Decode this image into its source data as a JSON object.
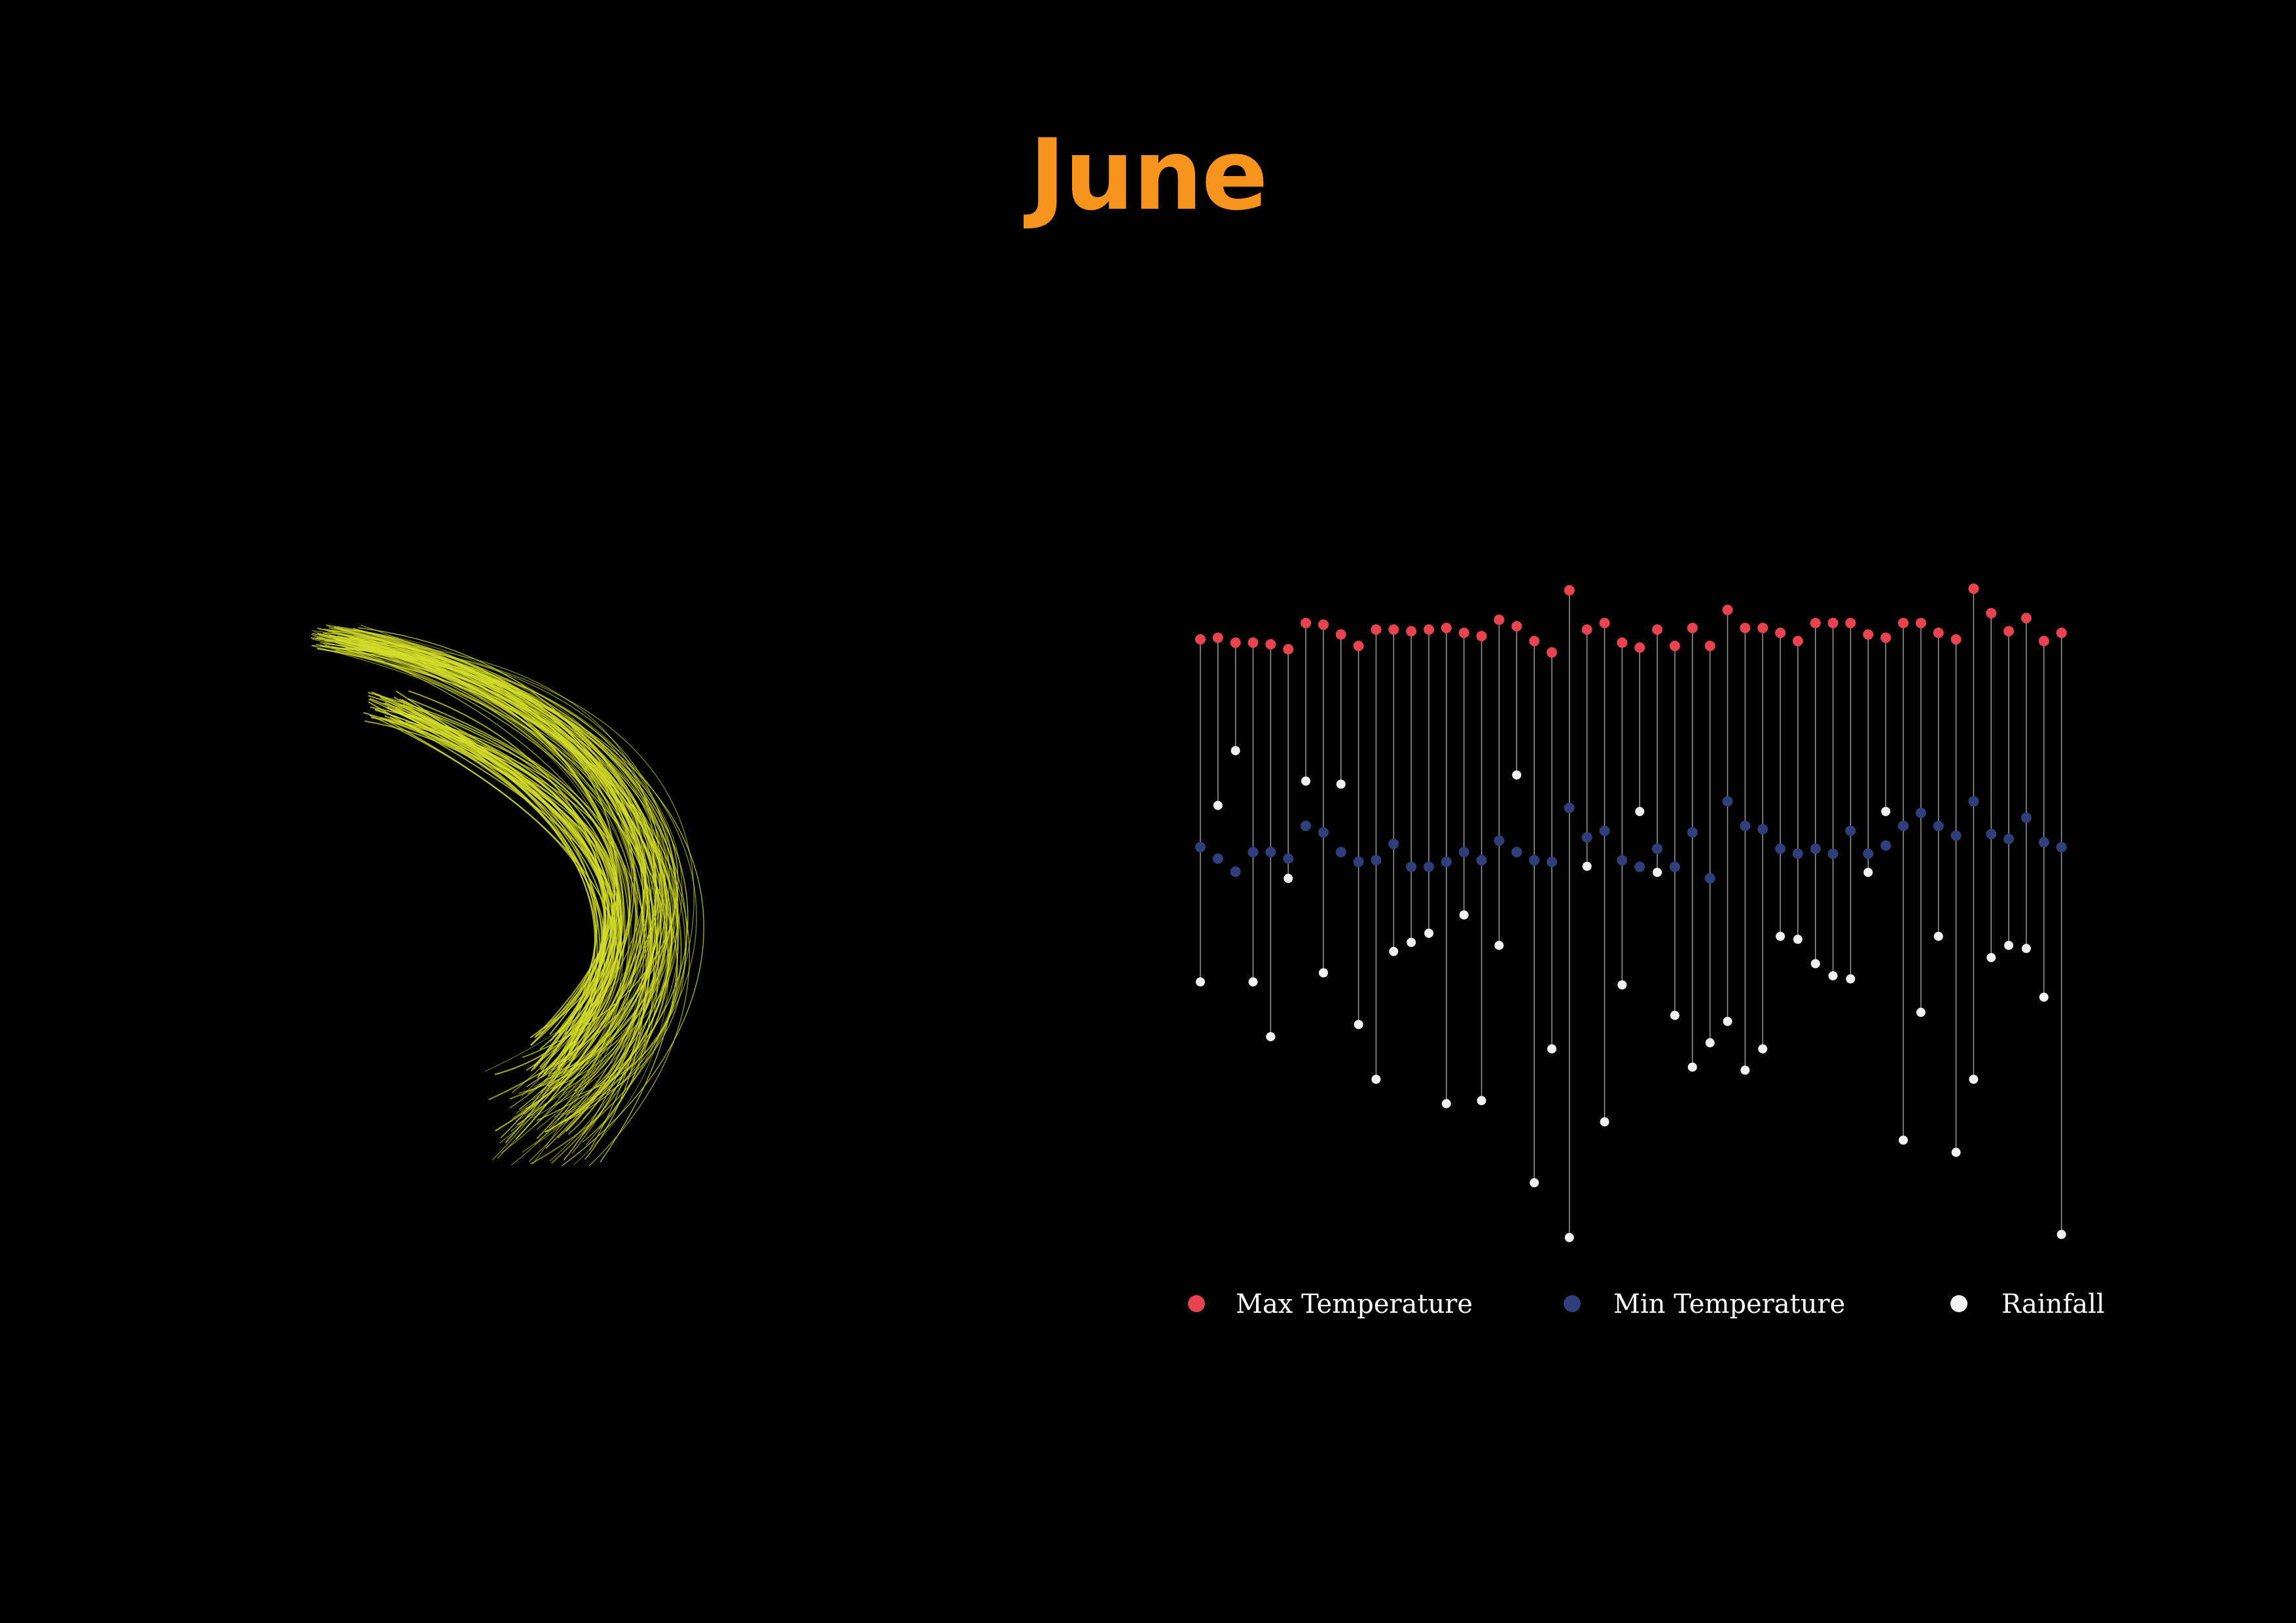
{
  "title": "June",
  "colors": {
    "background": "#000000",
    "title": "#f7941d",
    "swirl": "#d4de2a",
    "stem": "#bfbfbf",
    "max": "#e8434f",
    "min": "#2e3f7c",
    "rain": "#f2f2f2",
    "legend_text": "#ffffff"
  },
  "chart_data": [
    {
      "type": "line",
      "title": "",
      "xlabel": "",
      "ylabel": "",
      "note": "abstract swirl of overlapping curves, no axes or values printed",
      "series": []
    },
    {
      "type": "scatter",
      "title": "",
      "xlabel": "",
      "ylabel": "",
      "grid": false,
      "legend_position": "bottom",
      "series": [
        {
          "name": "Max Temperature",
          "values": [
            39.0,
            39.1,
            38.8,
            38.8,
            38.7,
            38.4,
            40.0,
            39.9,
            39.3,
            38.6,
            39.6,
            39.6,
            39.5,
            39.6,
            39.7,
            39.4,
            39.2,
            40.2,
            39.8,
            38.9,
            38.2,
            42.0,
            39.6,
            40.0,
            38.8,
            38.5,
            39.6,
            38.6,
            39.7,
            38.6,
            40.8,
            39.7,
            39.7,
            39.4,
            38.9,
            40.0,
            40.0,
            40.0,
            39.3,
            39.1,
            40.0,
            40.0,
            39.4,
            39.0,
            42.1,
            40.6,
            39.5,
            40.3,
            38.9,
            39.4
          ]
        },
        {
          "name": "Min Temperature",
          "values": [
            26.3,
            25.6,
            24.8,
            26.0,
            26.0,
            25.6,
            27.6,
            27.2,
            26.0,
            25.4,
            25.5,
            26.5,
            25.1,
            25.1,
            25.4,
            26.0,
            25.5,
            26.7,
            26.0,
            25.5,
            25.4,
            28.7,
            26.9,
            27.3,
            25.5,
            25.1,
            26.2,
            25.1,
            27.2,
            24.4,
            29.1,
            27.6,
            27.4,
            26.2,
            25.9,
            26.2,
            25.9,
            27.3,
            25.9,
            26.4,
            27.6,
            28.4,
            27.6,
            27.0,
            29.1,
            27.1,
            26.8,
            28.1,
            26.6,
            26.3
          ]
        },
        {
          "name": "Rainfall",
          "values": [
            48.0,
            19.0,
            10.0,
            48.0,
            57.0,
            31.0,
            15.0,
            46.5,
            15.5,
            55.0,
            64.0,
            43.0,
            41.5,
            40.0,
            68.0,
            37.0,
            67.5,
            42.0,
            14.0,
            81.0,
            59.0,
            90.0,
            29.0,
            71.0,
            48.5,
            20.0,
            30.0,
            53.5,
            62.0,
            58.0,
            54.5,
            62.5,
            59.0,
            40.5,
            41.0,
            45.0,
            47.0,
            47.5,
            30.0,
            20.0,
            74.0,
            53.0,
            40.5,
            76.0,
            64.0,
            44.0,
            42.0,
            42.5,
            50.5,
            89.5
          ]
        }
      ]
    }
  ],
  "legend": [
    {
      "label": "Max Temperature",
      "key": "max"
    },
    {
      "label": "Min Temperature",
      "key": "min"
    },
    {
      "label": "Rainfall",
      "key": "rain"
    }
  ]
}
